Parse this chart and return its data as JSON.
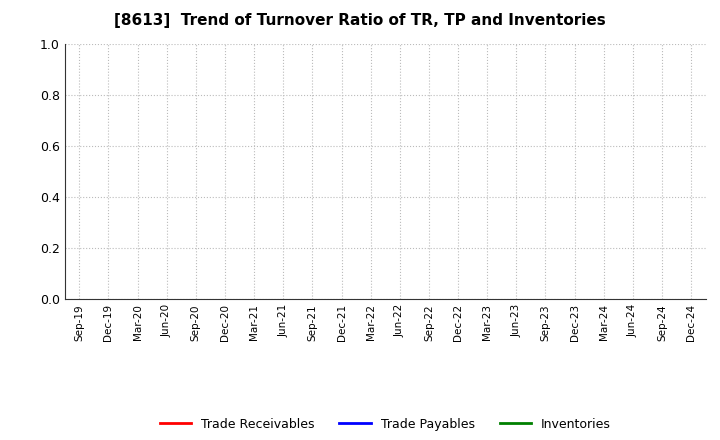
{
  "title": "[8613]  Trend of Turnover Ratio of TR, TP and Inventories",
  "title_fontsize": 11,
  "background_color": "#ffffff",
  "ylim": [
    0.0,
    1.0
  ],
  "yticks": [
    0.0,
    0.2,
    0.4,
    0.6,
    0.8,
    1.0
  ],
  "xtick_labels": [
    "Sep-19",
    "Dec-19",
    "Mar-20",
    "Jun-20",
    "Sep-20",
    "Dec-20",
    "Mar-21",
    "Jun-21",
    "Sep-21",
    "Dec-21",
    "Mar-22",
    "Jun-22",
    "Sep-22",
    "Dec-22",
    "Mar-23",
    "Jun-23",
    "Sep-23",
    "Dec-23",
    "Mar-24",
    "Jun-24",
    "Sep-24",
    "Dec-24"
  ],
  "grid_color": "#bbbbbb",
  "grid_linestyle": ":",
  "grid_linewidth": 0.8,
  "legend": [
    {
      "label": "Trade Receivables",
      "color": "#ff0000"
    },
    {
      "label": "Trade Payables",
      "color": "#0000ff"
    },
    {
      "label": "Inventories",
      "color": "#008000"
    }
  ]
}
